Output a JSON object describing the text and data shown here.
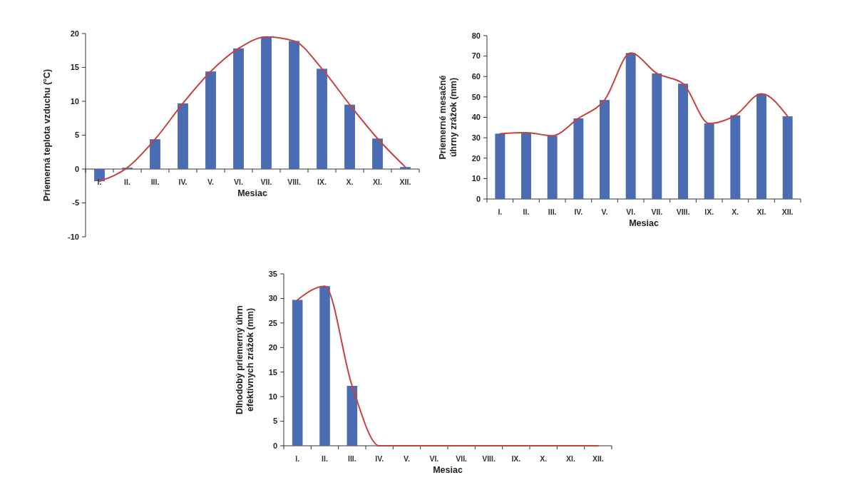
{
  "chart_data": [
    {
      "type": "bar",
      "xlabel": "Mesiac",
      "ylabel": "Priemerná teplota vzduchu (°C)",
      "categories": [
        "I.",
        "II.",
        "III.",
        "IV.",
        "V.",
        "VI.",
        "VII.",
        "VIII.",
        "IX.",
        "X.",
        "XI.",
        "XII."
      ],
      "ylim": [
        -10,
        20
      ],
      "yticks": [
        -10,
        -5,
        0,
        5,
        10,
        15,
        20
      ],
      "series": [
        {
          "type": "bar",
          "color": "#4a6cb3",
          "values": [
            -1.8,
            0.2,
            4.4,
            9.7,
            14.4,
            17.8,
            19.5,
            18.9,
            14.8,
            9.5,
            4.5,
            0.3
          ]
        },
        {
          "type": "line",
          "color": "#c8423c",
          "values": [
            -1.8,
            0.2,
            4.4,
            9.7,
            14.4,
            17.8,
            19.5,
            18.9,
            14.8,
            9.5,
            4.5,
            0.3
          ]
        }
      ]
    },
    {
      "type": "bar",
      "xlabel": "Mesiac",
      "ylabel": "Priemerné mesačné\núhrny zrážok (mm)",
      "categories": [
        "I.",
        "II.",
        "III.",
        "IV.",
        "V.",
        "VI.",
        "VII.",
        "VIII.",
        "IX.",
        "X.",
        "XI.",
        "XII."
      ],
      "ylim": [
        0,
        80
      ],
      "yticks": [
        0,
        10,
        20,
        30,
        40,
        50,
        60,
        70,
        80
      ],
      "series": [
        {
          "type": "bar",
          "color": "#4a6cb3",
          "values": [
            32,
            32.5,
            31,
            39.5,
            48.5,
            71.5,
            61.5,
            56.5,
            37,
            41,
            51.5,
            40.5
          ]
        },
        {
          "type": "line",
          "color": "#c8423c",
          "values": [
            32,
            32.5,
            31,
            39.5,
            48.5,
            71.5,
            61.5,
            56.5,
            37,
            41,
            51.5,
            40.5
          ]
        }
      ]
    },
    {
      "type": "bar",
      "xlabel": "Mesiac",
      "ylabel": "Dlhodobý priemerný úhrn\nefektívnych zrážok (mm)",
      "categories": [
        "I.",
        "II.",
        "III.",
        "IV.",
        "V.",
        "VI.",
        "VII.",
        "VIII.",
        "IX.",
        "X.",
        "XI.",
        "XII."
      ],
      "ylim": [
        0,
        35
      ],
      "yticks": [
        0,
        5,
        10,
        15,
        20,
        25,
        30,
        35
      ],
      "series": [
        {
          "type": "bar",
          "color": "#4a6cb3",
          "values": [
            29.7,
            32.5,
            12.2,
            0,
            0,
            0,
            0,
            0,
            0,
            0,
            0,
            0
          ]
        },
        {
          "type": "line",
          "color": "#c8423c",
          "values": [
            29.7,
            32.5,
            12.2,
            0,
            0,
            0,
            0,
            0,
            0,
            0,
            0,
            0
          ]
        }
      ]
    }
  ]
}
